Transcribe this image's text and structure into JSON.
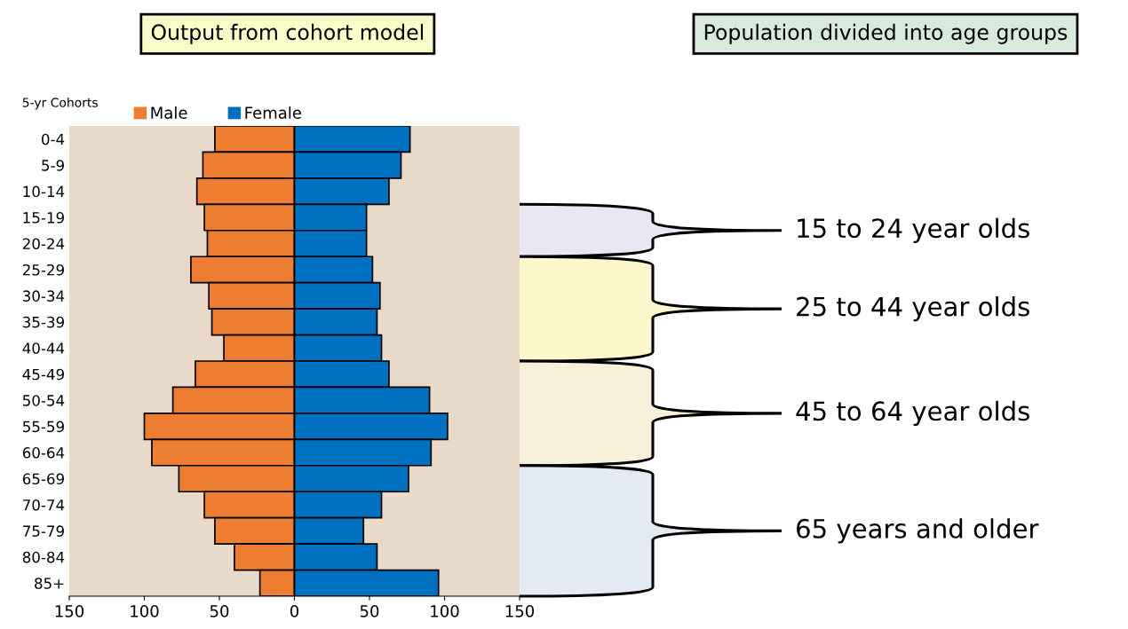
{
  "chart_data": {
    "type": "bar",
    "orientation": "horizontal",
    "stacked": true,
    "ylabel": "5-yr Cohorts",
    "categories": [
      "0-4",
      "5-9",
      "10-14",
      "15-19",
      "20-24",
      "25-29",
      "30-34",
      "35-39",
      "40-44",
      "45-49",
      "50-54",
      "55-59",
      "60-64",
      "65-69",
      "70-74",
      "75-79",
      "80-84",
      "85+"
    ],
    "series": [
      {
        "name": "Male",
        "color": "#ed7d31",
        "values": [
          -53,
          -61,
          -65,
          -60,
          -58,
          -69,
          -57,
          -55,
          -47,
          -66,
          -81,
          -100,
          -95,
          -77,
          -60,
          -53,
          -40,
          -23
        ]
      },
      {
        "name": "Female",
        "color": "#0070c0",
        "values": [
          77,
          71,
          63,
          48,
          48,
          52,
          57,
          55,
          58,
          63,
          90,
          102,
          91,
          76,
          58,
          46,
          55,
          96
        ]
      }
    ],
    "xlim": [
      -150,
      150
    ],
    "xticks": [
      {
        "value": -150,
        "label": "150"
      },
      {
        "value": -100,
        "label": "100"
      },
      {
        "value": -50,
        "label": "50"
      },
      0,
      50,
      100,
      150
    ],
    "grid": false,
    "legend": "top",
    "annotations": [
      "Output from cohort model",
      "Population divided into age groups",
      "15 to 24 year olds",
      "25 to 44 year olds",
      "45 to 64 year olds",
      "65 years and older"
    ]
  }
}
